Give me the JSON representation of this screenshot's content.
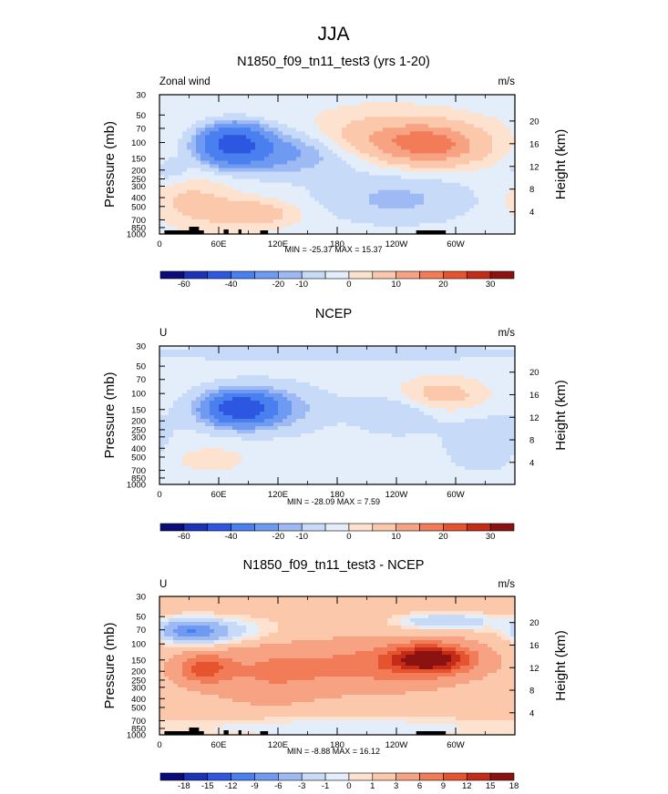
{
  "figure_title": "JJA",
  "chart_data": [
    {
      "type": "heatmap",
      "title": "N1850_f09_tn11_test3 (yrs 1-20)",
      "left_label": "Zonal wind",
      "units": "m/s",
      "xlabel": "",
      "ylabel": "Pressure (mb)",
      "ylabel_right": "Height (km)",
      "x_ticks": [
        "0",
        "60E",
        "120E",
        "180",
        "120W",
        "60W"
      ],
      "pressure_ticks": [
        "30",
        "50",
        "70",
        "100",
        "150",
        "200",
        "250",
        "300",
        "400",
        "500",
        "700",
        "850",
        "1000"
      ],
      "height_ticks": [
        "20",
        "16",
        "12",
        "8",
        "4"
      ],
      "stats_text": "MIN = -25.37  MAX =  15.37",
      "min": -25.37,
      "max": 15.37,
      "colorbar_labels": [
        "-60",
        "-40",
        "-20",
        "-10",
        "0",
        "10",
        "20",
        "30"
      ],
      "features": [
        {
          "kind": "jet",
          "lon": 75,
          "pressure": 150,
          "value": -25
        },
        {
          "kind": "jet",
          "lon": 272,
          "pressure": 150,
          "value": 15
        },
        {
          "kind": "band",
          "lon": 85,
          "pressure": 700,
          "value": 8
        },
        {
          "kind": "band",
          "lon": 240,
          "pressure": 500,
          "value": -4
        }
      ]
    },
    {
      "type": "heatmap",
      "title": "NCEP",
      "left_label": "U",
      "units": "m/s",
      "xlabel": "",
      "ylabel": "Pressure (mb)",
      "ylabel_right": "Height (km)",
      "x_ticks": [
        "0",
        "60E",
        "120E",
        "180",
        "120W",
        "60W"
      ],
      "pressure_ticks": [
        "30",
        "50",
        "70",
        "100",
        "150",
        "200",
        "250",
        "300",
        "400",
        "500",
        "700",
        "850",
        "1000"
      ],
      "height_ticks": [
        "20",
        "16",
        "12",
        "8",
        "4"
      ],
      "stats_text": "MIN = -28.09  MAX =   7.59",
      "min": -28.09,
      "max": 7.59,
      "colorbar_labels": [
        "-60",
        "-40",
        "-20",
        "-10",
        "0",
        "10",
        "20",
        "30"
      ],
      "features": [
        {
          "kind": "jet",
          "lon": 80,
          "pressure": 150,
          "value": -28
        },
        {
          "kind": "jet",
          "lon": 280,
          "pressure": 120,
          "value": 7
        },
        {
          "kind": "band",
          "lon": 240,
          "pressure": 250,
          "value": -4
        }
      ]
    },
    {
      "type": "heatmap",
      "title": "N1850_f09_tn11_test3 - NCEP",
      "left_label": "U",
      "units": "m/s",
      "xlabel": "",
      "ylabel": "Pressure (mb)",
      "ylabel_right": "Height (km)",
      "x_ticks": [
        "0",
        "60E",
        "120E",
        "180",
        "120W",
        "60W"
      ],
      "pressure_ticks": [
        "30",
        "50",
        "70",
        "100",
        "150",
        "200",
        "250",
        "300",
        "400",
        "500",
        "700",
        "850",
        "1000"
      ],
      "height_ticks": [
        "20",
        "16",
        "12",
        "8",
        "4"
      ],
      "stats_text": "MIN =  -8.88  MAX =  16.12",
      "min": -8.88,
      "max": 16.12,
      "colorbar_labels": [
        "-18",
        "-15",
        "-12",
        "-9",
        "-6",
        "-3",
        "-1",
        "0",
        "1",
        "3",
        "6",
        "9",
        "12",
        "15",
        "18"
      ],
      "features": [
        {
          "kind": "jet",
          "lon": 275,
          "pressure": 150,
          "value": 16
        },
        {
          "kind": "jet",
          "lon": 45,
          "pressure": 200,
          "value": 9
        },
        {
          "kind": "band",
          "lon": 30,
          "pressure": 100,
          "value": -8
        },
        {
          "kind": "band",
          "lon": 290,
          "pressure": 70,
          "value": -5
        }
      ]
    }
  ],
  "colorbar_colors": [
    "#0b0b7a",
    "#1a33b8",
    "#2d57e0",
    "#4a7ff0",
    "#6e9af2",
    "#9dbaf5",
    "#c7dbf9",
    "#e4eefb",
    "#fde2cf",
    "#fbc8ab",
    "#f7a383",
    "#f27b58",
    "#e6542f",
    "#c42c17",
    "#8c1111"
  ],
  "colors": {
    "land": "#000000",
    "axis": "#000000",
    "background": "#ffffff"
  }
}
